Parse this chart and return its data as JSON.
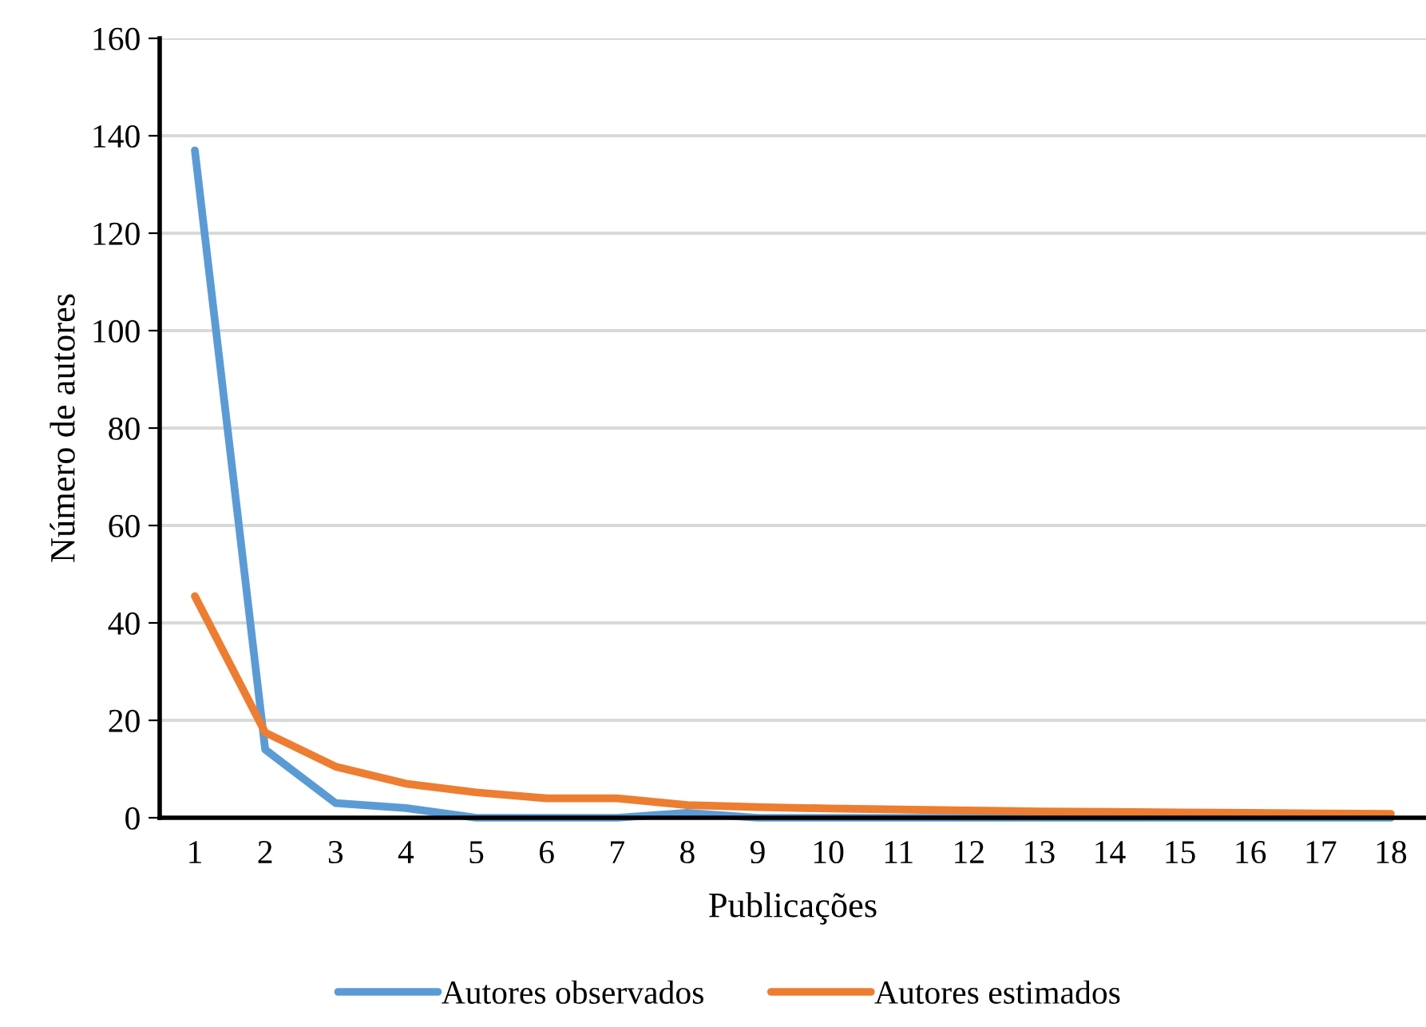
{
  "chart_data": {
    "type": "line",
    "xlabel": "Publicações",
    "ylabel": "Número de autores",
    "categories": [
      "1",
      "2",
      "3",
      "4",
      "5",
      "6",
      "7",
      "8",
      "9",
      "10",
      "11",
      "12",
      "13",
      "14",
      "15",
      "16",
      "17",
      "18"
    ],
    "series": [
      {
        "name": "Autores observados",
        "color": "#5b9bd5",
        "values": [
          137,
          14,
          3,
          2,
          0,
          0,
          0,
          1,
          0,
          0,
          0,
          0,
          0,
          0,
          0,
          0,
          0,
          0
        ]
      },
      {
        "name": "Autores estimados",
        "color": "#ed7d31",
        "values": [
          45.5,
          17.5,
          10.5,
          7,
          5.2,
          4,
          4,
          2.6,
          2.2,
          1.9,
          1.7,
          1.5,
          1.3,
          1.2,
          1.1,
          1,
          0.9,
          0.8
        ]
      }
    ],
    "ylim": [
      0,
      160
    ],
    "yticks": [
      0,
      20,
      40,
      60,
      80,
      100,
      120,
      140,
      160
    ],
    "grid": "y",
    "legend": "bottom"
  }
}
